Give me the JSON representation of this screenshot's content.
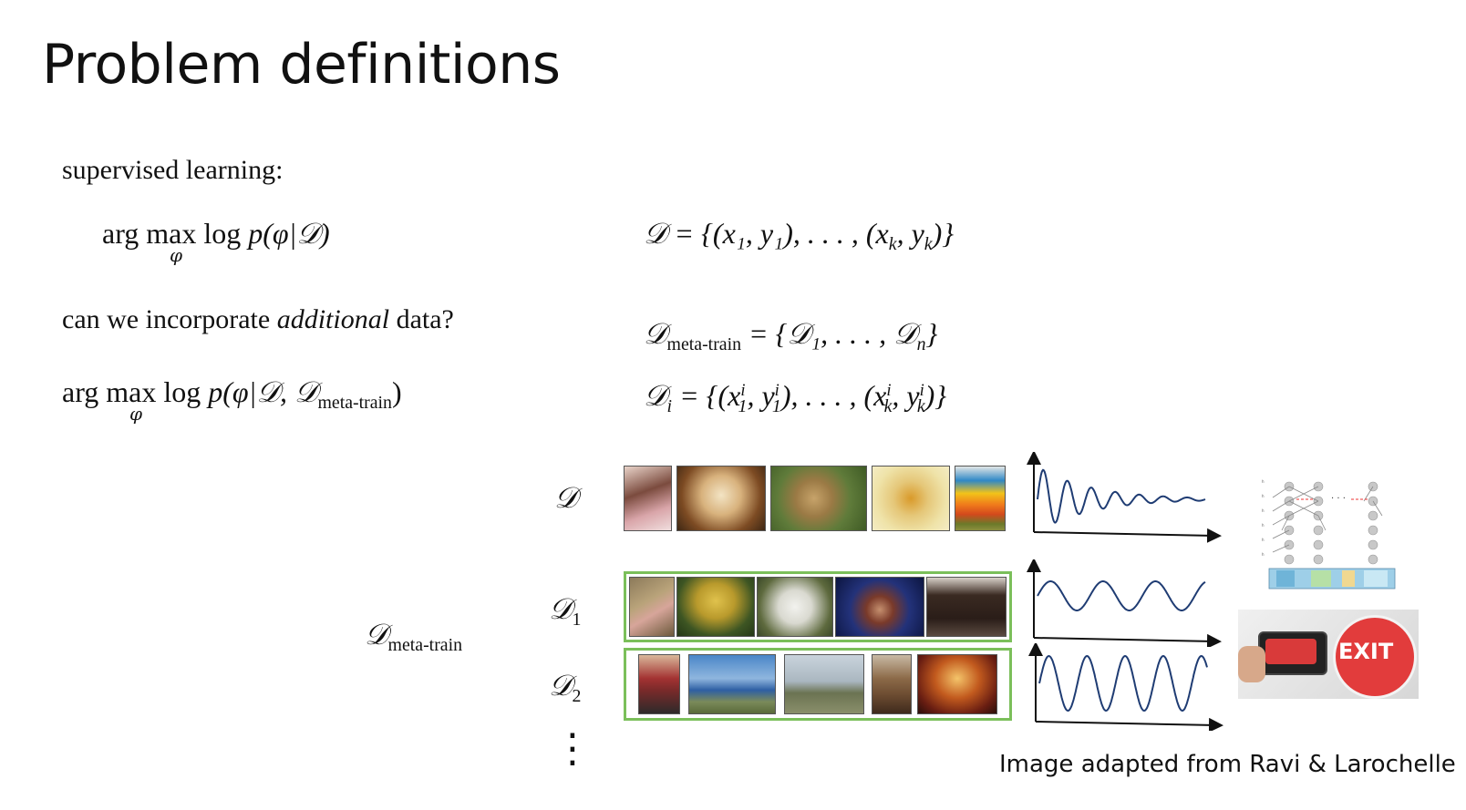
{
  "title": "Problem definitions",
  "left": {
    "supervised_label": "supervised learning:",
    "argmax1": {
      "prefix": "arg max log ",
      "expr": "p(φ|𝒟)",
      "under": "φ"
    },
    "question_pre": "can we incorporate ",
    "question_em": "additional",
    "question_post": " data?",
    "argmax2": {
      "prefix": "arg max log ",
      "expr": "p(φ|𝒟, 𝒟",
      "sub": "meta-train",
      "close": ")",
      "under": "φ"
    }
  },
  "right": {
    "d_def": "𝒟 = {(x₁, y₁), . . . , (x",
    "d_def_k": "k",
    "d_def_mid": ", y",
    "d_def_k2": "k",
    "d_def_end": ")}",
    "meta_lhs": "𝒟",
    "meta_sub": "meta-train",
    "meta_rhs": " = {𝒟₁, . . . , 𝒟",
    "meta_n": "n",
    "meta_end": "}",
    "di_lhs": "𝒟",
    "di_sub": "i",
    "di_rhs": " = {(x",
    "di_x1sup": "i",
    "di_x1sub": "1",
    "di_y": ", y",
    "di_y1sup": "i",
    "di_y1sub": "1",
    "di_mid": "), . . . , (x",
    "di_xk_sup": "i",
    "di_xk_sub": "k",
    "di_y2": ", y",
    "di_yk_sup": "i",
    "di_yk_sub": "k",
    "di_end": ")}"
  },
  "diagram": {
    "row_labels": {
      "d": "𝒟",
      "d1": "𝒟",
      "d1_sub": "1",
      "d2": "𝒟",
      "d2_sub": "2"
    },
    "meta_label": "𝒟",
    "meta_label_sub": "meta-train",
    "ellipsis": "⋮",
    "exit_sign": "EXIT",
    "accent_green": "#7bbf5a",
    "curve_color": "#1f3c73"
  },
  "caption": "Image adapted from Ravi & Larochelle"
}
